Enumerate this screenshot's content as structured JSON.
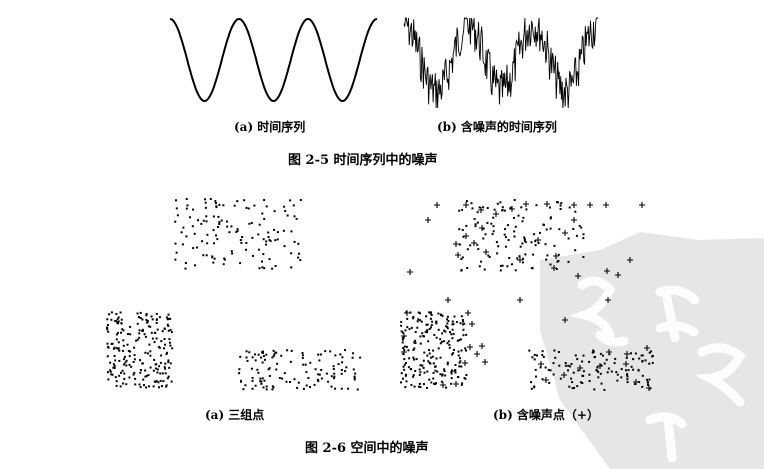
{
  "header_fragment": "",
  "figure_2_5": {
    "caption": "图 2-5    时间序列中的噪声",
    "sub_a": "(a) 时间序列",
    "sub_b": "(b) 含噪声的时间序列"
  },
  "figure_2_6": {
    "caption": "图 2-6    空间中的噪声",
    "sub_a": "(a) 三组点",
    "sub_b": "(b) 含噪声点（+）"
  },
  "colors": {
    "ink": "#000000",
    "watermark": "#c8c8c8"
  }
}
